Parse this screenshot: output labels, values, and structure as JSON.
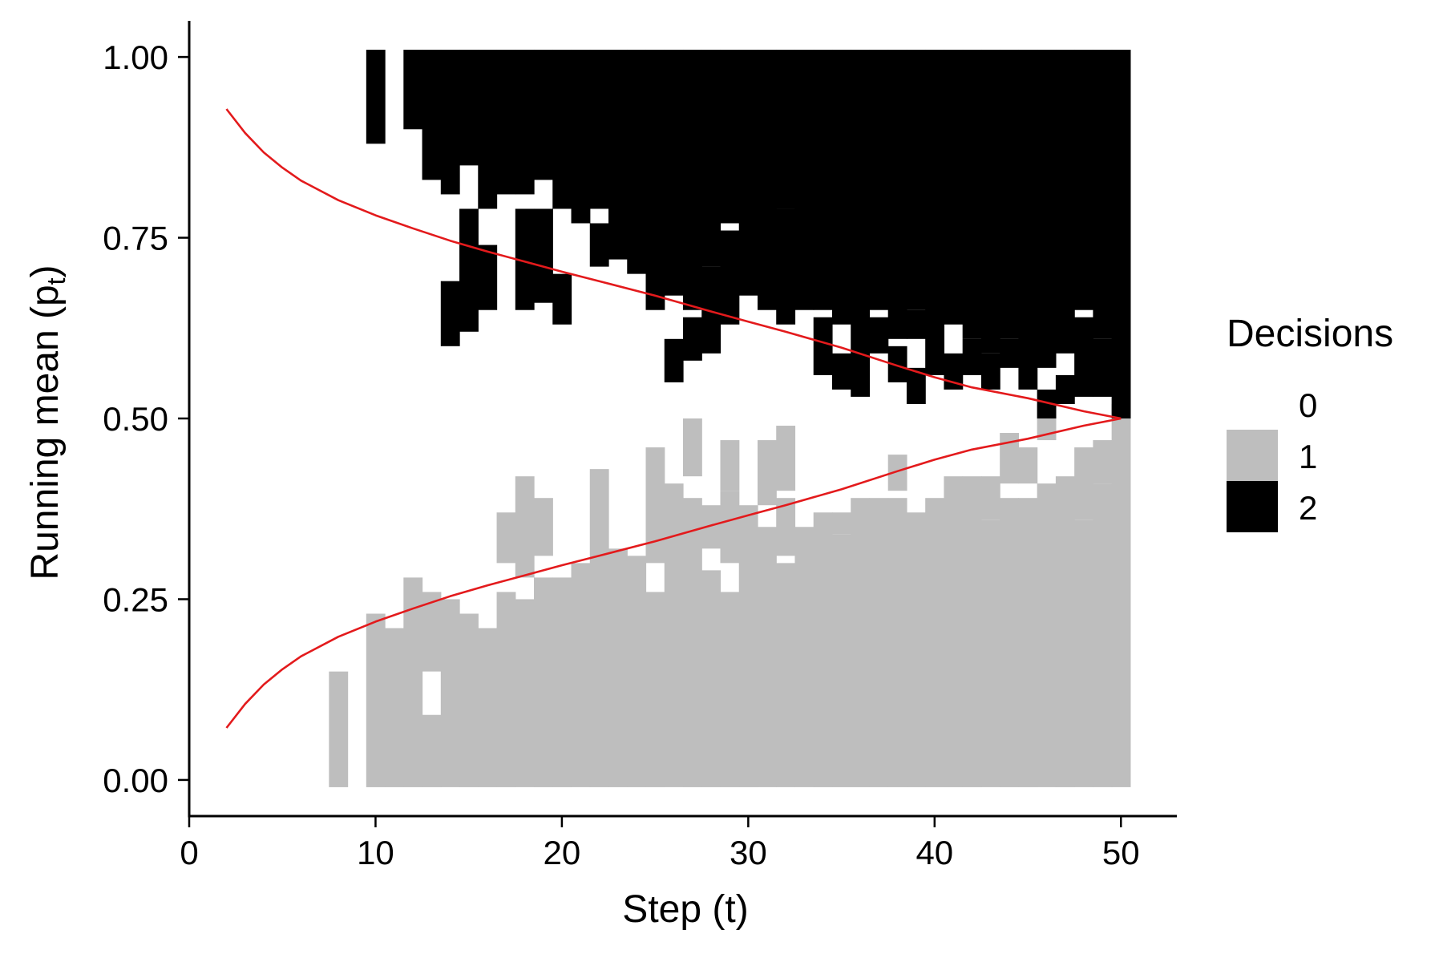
{
  "chart_data": {
    "type": "heatmap",
    "title": "",
    "xlabel": "Step (t)",
    "ylabel_main": "Running mean (p",
    "ylabel_sub": "t",
    "ylabel_close": ")",
    "xlim": [
      0,
      53
    ],
    "ylim": [
      -0.05,
      1.05
    ],
    "x_ticks": [
      0,
      10,
      20,
      30,
      40,
      50
    ],
    "x_tick_labels": [
      "0",
      "10",
      "20",
      "30",
      "40",
      "50"
    ],
    "y_ticks": [
      0,
      0.25,
      0.5,
      0.75,
      1
    ],
    "y_tick_labels": [
      "0.00",
      "0.25",
      "0.50",
      "0.75",
      "1.00"
    ],
    "grid": false,
    "legend": {
      "title": "Decisions",
      "placement": "right",
      "entries": [
        {
          "label": "0",
          "color": "#ffffff"
        },
        {
          "label": "1",
          "color": "#bebebe"
        },
        {
          "label": "2",
          "color": "#000000"
        }
      ]
    },
    "tile_x_range": [
      8,
      50
    ],
    "tile_height": 0.02,
    "columns": [
      {
        "x": 8,
        "g": [
          [
            0.0,
            0.14
          ]
        ],
        "b": []
      },
      {
        "x": 10,
        "g": [
          [
            0.0,
            0.22
          ]
        ],
        "b": [
          [
            0.89,
            1.0
          ]
        ]
      },
      {
        "x": 11,
        "g": [
          [
            0.0,
            0.2
          ]
        ],
        "b": []
      },
      {
        "x": 12,
        "g": [
          [
            0.0,
            0.27
          ]
        ],
        "b": [
          [
            0.91,
            1.0
          ]
        ]
      },
      {
        "x": 13,
        "g": [
          [
            0.0,
            0.08
          ],
          [
            0.16,
            0.25
          ]
        ],
        "b": [
          [
            0.84,
            1.0
          ]
        ]
      },
      {
        "x": 14,
        "g": [
          [
            0.0,
            0.24
          ]
        ],
        "b": [
          [
            0.61,
            0.68
          ],
          [
            0.82,
            1.0
          ]
        ]
      },
      {
        "x": 15,
        "g": [
          [
            0.0,
            0.22
          ]
        ],
        "b": [
          [
            0.63,
            0.78
          ],
          [
            0.86,
            1.0
          ]
        ]
      },
      {
        "x": 16,
        "g": [
          [
            0.0,
            0.2
          ]
        ],
        "b": [
          [
            0.66,
            0.73
          ],
          [
            0.8,
            1.0
          ]
        ]
      },
      {
        "x": 17,
        "g": [
          [
            0.0,
            0.25
          ],
          [
            0.31,
            0.36
          ]
        ],
        "b": [
          [
            0.82,
            1.0
          ]
        ]
      },
      {
        "x": 18,
        "g": [
          [
            0.0,
            0.24
          ],
          [
            0.29,
            0.41
          ]
        ],
        "b": [
          [
            0.66,
            0.78
          ],
          [
            0.82,
            1.0
          ]
        ]
      },
      {
        "x": 19,
        "g": [
          [
            0.0,
            0.27
          ],
          [
            0.32,
            0.38
          ]
        ],
        "b": [
          [
            0.67,
            0.78
          ],
          [
            0.84,
            1.0
          ]
        ]
      },
      {
        "x": 20,
        "g": [
          [
            0.0,
            0.27
          ]
        ],
        "b": [
          [
            0.64,
            0.69
          ],
          [
            0.8,
            1.0
          ]
        ]
      },
      {
        "x": 21,
        "g": [
          [
            0.0,
            0.29
          ]
        ],
        "b": [
          [
            0.78,
            1.0
          ]
        ]
      },
      {
        "x": 22,
        "g": [
          [
            0.0,
            0.42
          ]
        ],
        "b": [
          [
            0.72,
            0.76
          ],
          [
            0.8,
            1.0
          ]
        ]
      },
      {
        "x": 23,
        "g": [
          [
            0.0,
            0.31
          ]
        ],
        "b": [
          [
            0.73,
            1.0
          ]
        ]
      },
      {
        "x": 24,
        "g": [
          [
            0.0,
            0.3
          ]
        ],
        "b": [
          [
            0.71,
            1.0
          ]
        ]
      },
      {
        "x": 25,
        "g": [
          [
            0.0,
            0.25
          ],
          [
            0.31,
            0.45
          ]
        ],
        "b": [
          [
            0.66,
            1.0
          ]
        ]
      },
      {
        "x": 26,
        "g": [
          [
            0.0,
            0.4
          ]
        ],
        "b": [
          [
            0.56,
            0.6
          ],
          [
            0.68,
            1.0
          ]
        ]
      },
      {
        "x": 27,
        "g": [
          [
            0.0,
            0.38
          ],
          [
            0.43,
            0.49
          ]
        ],
        "b": [
          [
            0.59,
            0.63
          ],
          [
            0.66,
            1.0
          ]
        ]
      },
      {
        "x": 28,
        "g": [
          [
            0.0,
            0.28
          ],
          [
            0.33,
            0.37
          ]
        ],
        "b": [
          [
            0.6,
            0.7
          ],
          [
            0.72,
            1.0
          ]
        ]
      },
      {
        "x": 29,
        "g": [
          [
            0.0,
            0.25
          ],
          [
            0.31,
            0.39
          ],
          [
            0.41,
            0.46
          ]
        ],
        "b": [
          [
            0.64,
            0.75
          ],
          [
            0.78,
            1.0
          ]
        ]
      },
      {
        "x": 30,
        "g": [
          [
            0.0,
            0.37
          ]
        ],
        "b": [
          [
            0.68,
            1.0
          ]
        ]
      },
      {
        "x": 31,
        "g": [
          [
            0.0,
            0.34
          ],
          [
            0.39,
            0.46
          ]
        ],
        "b": [
          [
            0.66,
            1.0
          ]
        ]
      },
      {
        "x": 32,
        "g": [
          [
            0.0,
            0.29
          ],
          [
            0.32,
            0.38
          ],
          [
            0.41,
            0.48
          ]
        ],
        "b": [
          [
            0.64,
            0.78
          ],
          [
            0.8,
            1.0
          ]
        ]
      },
      {
        "x": 33,
        "g": [
          [
            0.0,
            0.34
          ]
        ],
        "b": [
          [
            0.66,
            1.0
          ]
        ]
      },
      {
        "x": 34,
        "g": [
          [
            0.0,
            0.36
          ]
        ],
        "b": [
          [
            0.57,
            0.63
          ],
          [
            0.66,
            1.0
          ]
        ]
      },
      {
        "x": 35,
        "g": [
          [
            0.0,
            0.33
          ],
          [
            0.35,
            0.36
          ]
        ],
        "b": [
          [
            0.55,
            0.58
          ],
          [
            0.64,
            1.0
          ]
        ]
      },
      {
        "x": 36,
        "g": [
          [
            0.0,
            0.38
          ]
        ],
        "b": [
          [
            0.54,
            1.0
          ]
        ]
      },
      {
        "x": 37,
        "g": [
          [
            0.0,
            0.38
          ]
        ],
        "b": [
          [
            0.6,
            0.63
          ],
          [
            0.66,
            1.0
          ]
        ]
      },
      {
        "x": 38,
        "g": [
          [
            0.0,
            0.38
          ],
          [
            0.41,
            0.44
          ]
        ],
        "b": [
          [
            0.56,
            0.59
          ],
          [
            0.62,
            1.0
          ]
        ]
      },
      {
        "x": 39,
        "g": [
          [
            0.0,
            0.36
          ]
        ],
        "b": [
          [
            0.53,
            0.56
          ],
          [
            0.62,
            0.64
          ],
          [
            0.66,
            1.0
          ]
        ]
      },
      {
        "x": 40,
        "g": [
          [
            0.0,
            0.38
          ]
        ],
        "b": [
          [
            0.57,
            1.0
          ]
        ]
      },
      {
        "x": 41,
        "g": [
          [
            0.0,
            0.41
          ]
        ],
        "b": [
          [
            0.55,
            0.58
          ],
          [
            0.64,
            1.0
          ]
        ]
      },
      {
        "x": 42,
        "g": [
          [
            0.0,
            0.41
          ]
        ],
        "b": [
          [
            0.57,
            0.6
          ],
          [
            0.62,
            1.0
          ]
        ]
      },
      {
        "x": 43,
        "g": [
          [
            0.0,
            0.35
          ],
          [
            0.37,
            0.41
          ]
        ],
        "b": [
          [
            0.55,
            0.58
          ],
          [
            0.6,
            1.0
          ]
        ]
      },
      {
        "x": 44,
        "g": [
          [
            0.0,
            0.38
          ],
          [
            0.42,
            0.47
          ]
        ],
        "b": [
          [
            0.58,
            0.6
          ],
          [
            0.62,
            1.0
          ]
        ]
      },
      {
        "x": 45,
        "g": [
          [
            0.0,
            0.38
          ],
          [
            0.42,
            0.45
          ]
        ],
        "b": [
          [
            0.55,
            1.0
          ]
        ]
      },
      {
        "x": 46,
        "g": [
          [
            0.0,
            0.4
          ],
          [
            0.48,
            0.51
          ]
        ],
        "b": [
          [
            0.51,
            0.53
          ],
          [
            0.58,
            1.0
          ]
        ]
      },
      {
        "x": 47,
        "g": [
          [
            0.0,
            0.41
          ]
        ],
        "b": [
          [
            0.53,
            0.55
          ],
          [
            0.6,
            1.0
          ]
        ]
      },
      {
        "x": 48,
        "g": [
          [
            0.0,
            0.35
          ],
          [
            0.37,
            0.45
          ]
        ],
        "b": [
          [
            0.54,
            0.63
          ],
          [
            0.66,
            1.0
          ]
        ]
      },
      {
        "x": 49,
        "g": [
          [
            0.0,
            0.4
          ],
          [
            0.42,
            0.46
          ]
        ],
        "b": [
          [
            0.54,
            0.6
          ],
          [
            0.62,
            1.0
          ]
        ]
      },
      {
        "x": 50,
        "g": [
          [
            0.0,
            0.51
          ]
        ],
        "b": [
          [
            0.51,
            1.0
          ]
        ]
      }
    ],
    "curve": {
      "color": "#e31a1c",
      "x": [
        2,
        3,
        4,
        5,
        6,
        8,
        10,
        12,
        14,
        16,
        18,
        20,
        22,
        25,
        28,
        30,
        32,
        35,
        38,
        40,
        42,
        45,
        48,
        50
      ],
      "upper": [
        0.928,
        0.895,
        0.868,
        0.847,
        0.829,
        0.802,
        0.781,
        0.763,
        0.746,
        0.731,
        0.717,
        0.703,
        0.69,
        0.67,
        0.648,
        0.634,
        0.62,
        0.598,
        0.573,
        0.557,
        0.543,
        0.528,
        0.51,
        0.5
      ],
      "lower": [
        0.072,
        0.105,
        0.132,
        0.153,
        0.171,
        0.198,
        0.219,
        0.237,
        0.254,
        0.269,
        0.283,
        0.297,
        0.31,
        0.33,
        0.352,
        0.366,
        0.38,
        0.402,
        0.427,
        0.443,
        0.457,
        0.472,
        0.49,
        0.5
      ]
    }
  }
}
